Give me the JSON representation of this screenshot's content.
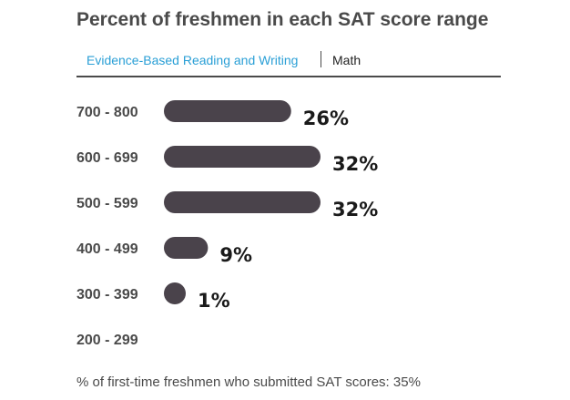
{
  "header": {
    "title": "Percent of freshmen in each SAT score range"
  },
  "tabs": [
    {
      "label": "Evidence-Based Reading and Writing",
      "active": true
    },
    {
      "label": "Math",
      "active": false
    }
  ],
  "colors": {
    "bar": "#4a434b",
    "active_tab": "#2a9fd6",
    "text": "#4a4a4a"
  },
  "chart_data": {
    "type": "bar",
    "orientation": "horizontal",
    "categories": [
      "700 - 800",
      "600 - 699",
      "500 - 599",
      "400 - 499",
      "300 - 399",
      "200 - 299"
    ],
    "values": [
      26,
      32,
      32,
      9,
      1,
      0
    ],
    "value_labels": [
      "26%",
      "32%",
      "32%",
      "9%",
      "1%",
      ""
    ],
    "xlim": [
      0,
      32
    ],
    "grid": false
  },
  "footnote": "% of first-time freshmen who submitted SAT scores: 35%"
}
